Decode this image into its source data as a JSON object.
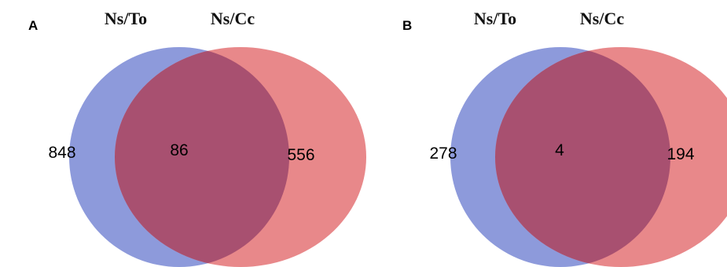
{
  "colors": {
    "left_set": "#8d9adb",
    "right_set": "#e8888a",
    "overlap": "#a85070"
  },
  "panels": [
    {
      "letter": "A",
      "left_title": "Ns/To",
      "right_title": "Ns/Cc",
      "left_only": "848",
      "overlap": "86",
      "right_only": "556"
    },
    {
      "letter": "B",
      "left_title": "Ns/To",
      "right_title": "Ns/Cc",
      "left_only": "278",
      "overlap": "4",
      "right_only": "194"
    }
  ]
}
